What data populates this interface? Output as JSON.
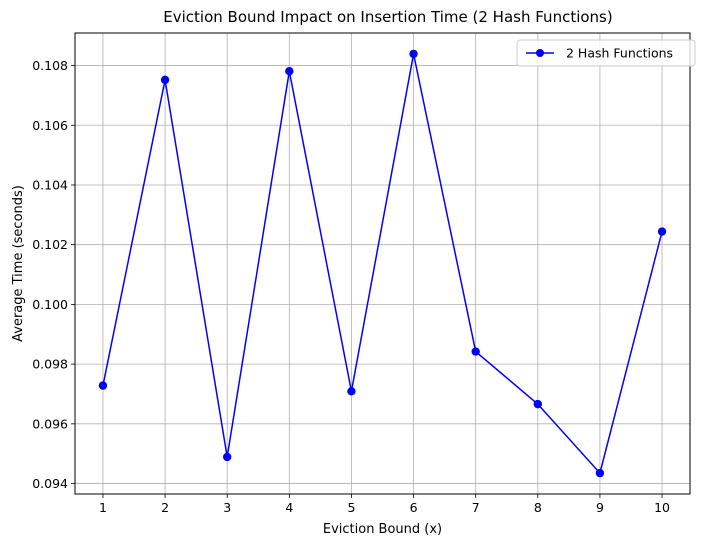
{
  "chart_data": {
    "type": "line",
    "title": "Eviction Bound Impact on Insertion Time (2 Hash Functions)",
    "xlabel": "Eviction Bound (x)",
    "ylabel": "Average Time (seconds)",
    "x": [
      1,
      2,
      3,
      4,
      5,
      6,
      7,
      8,
      9,
      10
    ],
    "series": [
      {
        "name": "2 Hash Functions",
        "color": "#0000ff",
        "marker": "circle",
        "values": [
          0.09728,
          0.10752,
          0.09489,
          0.10781,
          0.09709,
          0.10839,
          0.09842,
          0.09666,
          0.09435,
          0.10244
        ]
      }
    ],
    "xticks": [
      "1",
      "2",
      "3",
      "4",
      "5",
      "6",
      "7",
      "8",
      "9",
      "10"
    ],
    "yticks": [
      "0.094",
      "0.096",
      "0.098",
      "0.100",
      "0.102",
      "0.104",
      "0.106",
      "0.108"
    ],
    "ytick_values": [
      0.094,
      0.096,
      0.098,
      0.1,
      0.102,
      0.104,
      0.106,
      0.108
    ],
    "xlim": [
      0.55,
      10.45
    ],
    "ylim": [
      0.09365,
      0.10909
    ],
    "grid": true,
    "legend_position": "top-right"
  }
}
